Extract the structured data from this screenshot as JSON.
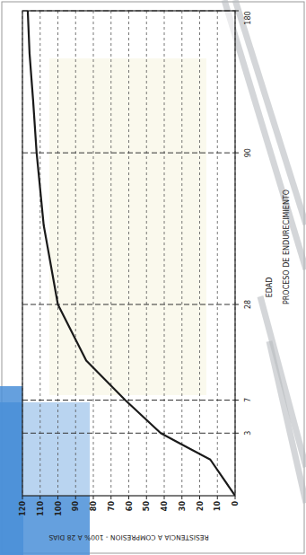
{
  "chart_data": {
    "type": "line",
    "title": "PROCESO DE ENDURECIMIENTO",
    "x_label": "EDAD",
    "y_label": "RESISTENCIA A COMPRESION - 100% A 28 DIAS",
    "x": [
      0,
      1,
      2,
      3,
      7,
      14,
      28,
      56,
      90,
      120,
      150,
      180
    ],
    "values": [
      0,
      14,
      30,
      42,
      62,
      84,
      100,
      108,
      112,
      114,
      116,
      117
    ],
    "color": "#1a1a1a",
    "xlim": [
      0,
      180
    ],
    "xticks": [
      3,
      7,
      28,
      90,
      180
    ],
    "ylim": [
      0,
      120
    ],
    "yticks": [
      0,
      10,
      20,
      30,
      40,
      50,
      60,
      70,
      80,
      90,
      100,
      110,
      120
    ],
    "grid": true
  }
}
